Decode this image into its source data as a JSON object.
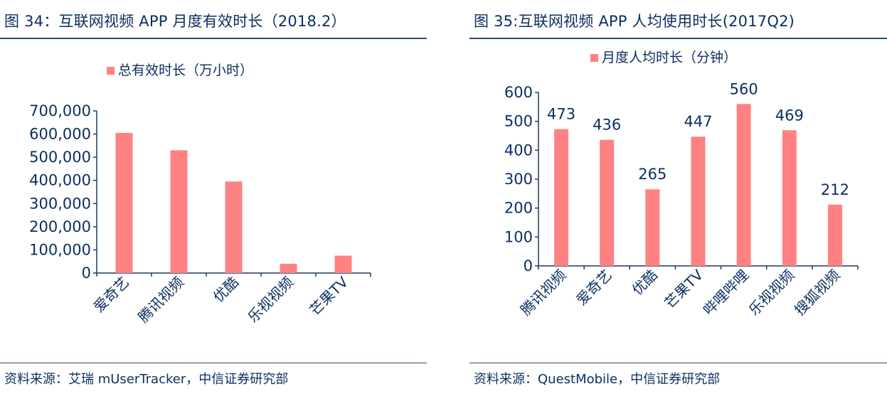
{
  "left": {
    "title": "图 34：互联网视频 APP 月度有效时长（2018.2）",
    "source": "资料来源：艾瑞 mUserTracker，中信证券研究部"
  },
  "right": {
    "title": "图 35:互联网视频 APP 人均使用时长(2017Q2)",
    "source": "资料来源：QuestMobile，中信证券研究部"
  },
  "colors": {
    "bar": "#fe8282",
    "axis": "#1f3864",
    "text": "#0b2e5f"
  },
  "chart_data": [
    {
      "type": "bar",
      "title": "",
      "categories": [
        "爱奇艺",
        "腾讯视频",
        "优酷",
        "乐视视频",
        "芒果TV"
      ],
      "series": [
        {
          "name": "总有效时长（万小时）",
          "values": [
            605000,
            530000,
            395000,
            40000,
            75000
          ]
        }
      ],
      "ylim": [
        0,
        700000
      ],
      "yticks": [
        "0",
        "100,000",
        "200,000",
        "300,000",
        "400,000",
        "500,000",
        "600,000",
        "700,000"
      ],
      "data_labels": false,
      "legend": "top-center"
    },
    {
      "type": "bar",
      "title": "",
      "categories": [
        "腾讯视频",
        "爱奇艺",
        "优酷",
        "芒果TV",
        "哔哩哔哩",
        "乐视视频",
        "搜狐视频"
      ],
      "series": [
        {
          "name": "月度人均时长（分钟）",
          "values": [
            473,
            436,
            265,
            447,
            560,
            469,
            212
          ]
        }
      ],
      "ylim": [
        0,
        600
      ],
      "yticks": [
        "0",
        "100",
        "200",
        "300",
        "400",
        "500",
        "600"
      ],
      "data_labels": true,
      "legend": "top-center"
    }
  ]
}
